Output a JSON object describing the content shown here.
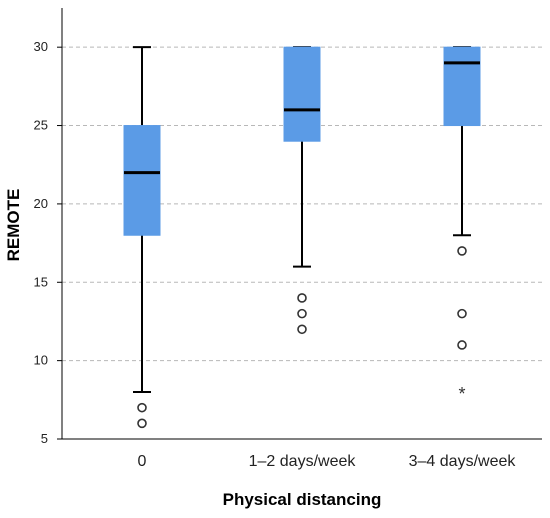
{
  "chart_data": {
    "type": "boxplot",
    "xlabel": "Physical distancing",
    "ylabel": "REMOTE",
    "ylim": [
      5,
      32.5
    ],
    "yticks": [
      5,
      10,
      15,
      20,
      25,
      30
    ],
    "grid": true,
    "box_color": "#5B9BE6",
    "categories": [
      "0",
      "1–2 days/week",
      "3–4 days/week"
    ],
    "boxes": [
      {
        "category": "0",
        "whisker_low": 8,
        "q1": 18,
        "median": 22,
        "q3": 25,
        "whisker_high": 30,
        "outliers": [
          7,
          6
        ],
        "extremes": []
      },
      {
        "category": "1–2 days/week",
        "whisker_low": 16,
        "q1": 24,
        "median": 26,
        "q3": 30,
        "whisker_high": 30,
        "outliers": [
          14,
          13,
          12
        ],
        "extremes": []
      },
      {
        "category": "3–4 days/week",
        "whisker_low": 18,
        "q1": 25,
        "median": 29,
        "q3": 30,
        "whisker_high": 30,
        "outliers": [
          17,
          13,
          11
        ],
        "extremes": [
          8
        ]
      }
    ]
  }
}
